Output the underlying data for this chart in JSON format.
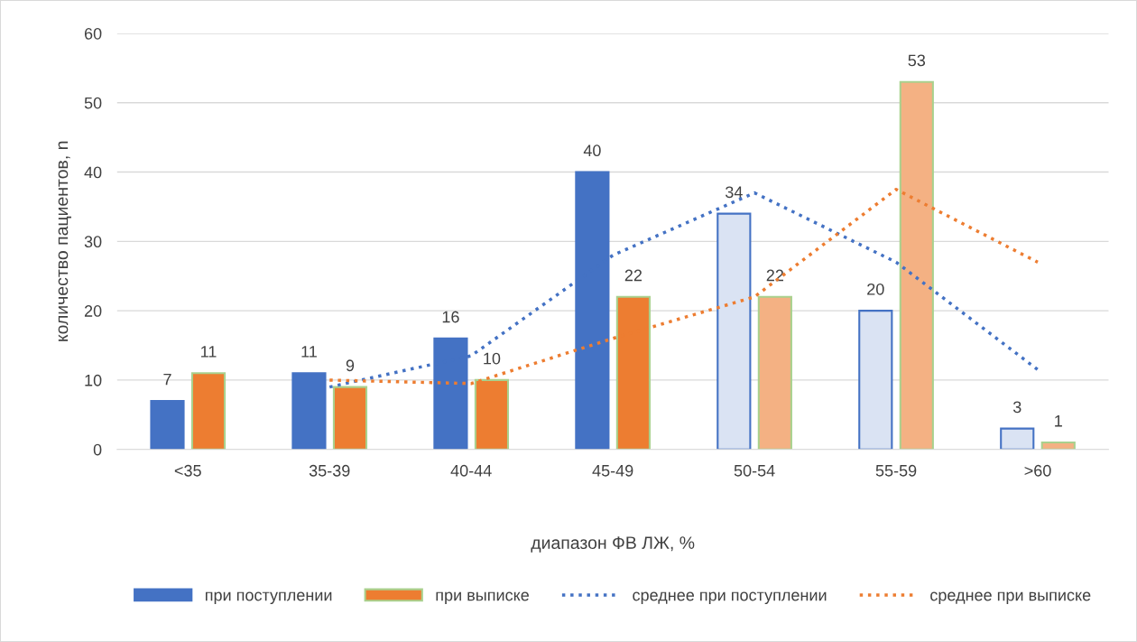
{
  "chart_data": {
    "type": "bar",
    "xlabel": "диапазон ФВ ЛЖ, %",
    "ylabel": "количество пациентов, n",
    "categories": [
      "<35",
      "35-39",
      "40-44",
      "45-49",
      "50-54",
      "55-59",
      ">60"
    ],
    "ylim": [
      0,
      60
    ],
    "yticks": [
      0,
      10,
      20,
      30,
      40,
      50,
      60
    ],
    "grid": "y",
    "legend": "bottom",
    "series": [
      {
        "name": "при поступлении",
        "color": "#4472c4",
        "colors": [
          "#4472c4",
          "#4472c4",
          "#4472c4",
          "#4472c4",
          "#dae3f3",
          "#dae3f3",
          "#dae3f3"
        ],
        "values": [
          7,
          11,
          16,
          40,
          34,
          20,
          3
        ],
        "value_labels": [
          "7",
          "11",
          "16",
          "40",
          "34",
          "20",
          "3"
        ]
      },
      {
        "name": "при выписке",
        "color": "#ed7d31",
        "colors": [
          "#ed7d31",
          "#ed7d31",
          "#ed7d31",
          "#ed7d31",
          "#f4b183",
          "#f4b183",
          "#f4b183"
        ],
        "values": [
          11,
          9,
          10,
          22,
          22,
          53,
          1
        ],
        "value_labels": [
          "11",
          "9",
          "10",
          "22",
          "22",
          "53",
          "1"
        ]
      },
      {
        "name": "среднее при поступлении",
        "type": "line",
        "line_style": "dotted",
        "color": "#4472c4",
        "values": [
          null,
          9,
          13.5,
          28,
          37,
          27,
          11.5
        ]
      },
      {
        "name": "среднее при выписке",
        "type": "line",
        "line_style": "dotted",
        "color": "#ed7d31",
        "values": [
          null,
          10,
          9.5,
          16,
          22,
          37.5,
          27
        ]
      }
    ]
  }
}
